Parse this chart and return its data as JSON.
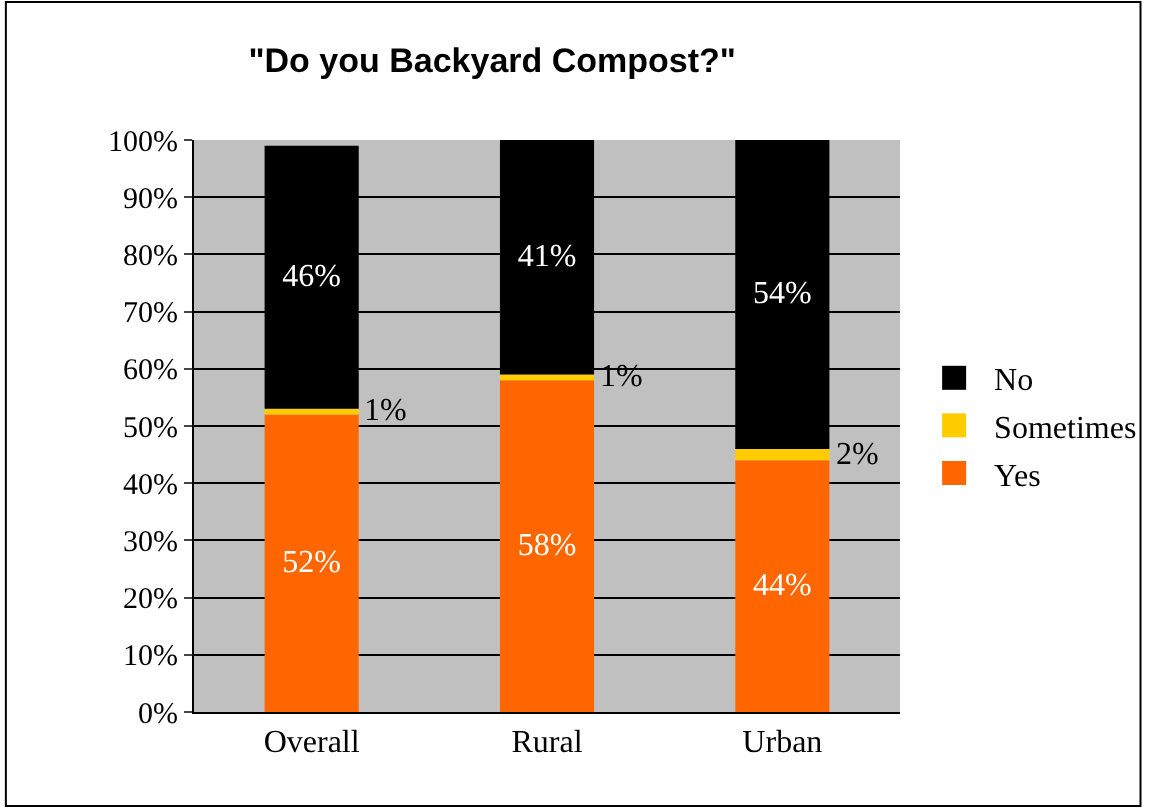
{
  "chart_data": {
    "type": "bar",
    "title": "\"Do you Backyard Compost?\"",
    "categories": [
      "Overall",
      "Rural",
      "Urban"
    ],
    "stacked": true,
    "ylim": [
      0,
      100
    ],
    "yticks": [
      {
        "value": 0,
        "label": "0%"
      },
      {
        "value": 10,
        "label": "10%"
      },
      {
        "value": 20,
        "label": "20%"
      },
      {
        "value": 30,
        "label": "30%"
      },
      {
        "value": 40,
        "label": "40%"
      },
      {
        "value": 50,
        "label": "50%"
      },
      {
        "value": 60,
        "label": "60%"
      },
      {
        "value": 70,
        "label": "70%"
      },
      {
        "value": 80,
        "label": "80%"
      },
      {
        "value": 90,
        "label": "90%"
      },
      {
        "value": 100,
        "label": "100%"
      }
    ],
    "grid": "y",
    "legend": "right",
    "series": [
      {
        "name": "Yes",
        "color": "#ff6600",
        "values": [
          52,
          58,
          44
        ],
        "value_labels": [
          "52%",
          "58%",
          "44%"
        ]
      },
      {
        "name": "Sometimes",
        "color": "#ffcc00",
        "values": [
          1,
          1,
          2
        ],
        "value_labels": [
          "1%",
          "1%",
          "2%"
        ]
      },
      {
        "name": "No",
        "color": "#000000",
        "values": [
          46,
          41,
          54
        ],
        "value_labels": [
          "46%",
          "41%",
          "54%"
        ]
      }
    ]
  }
}
